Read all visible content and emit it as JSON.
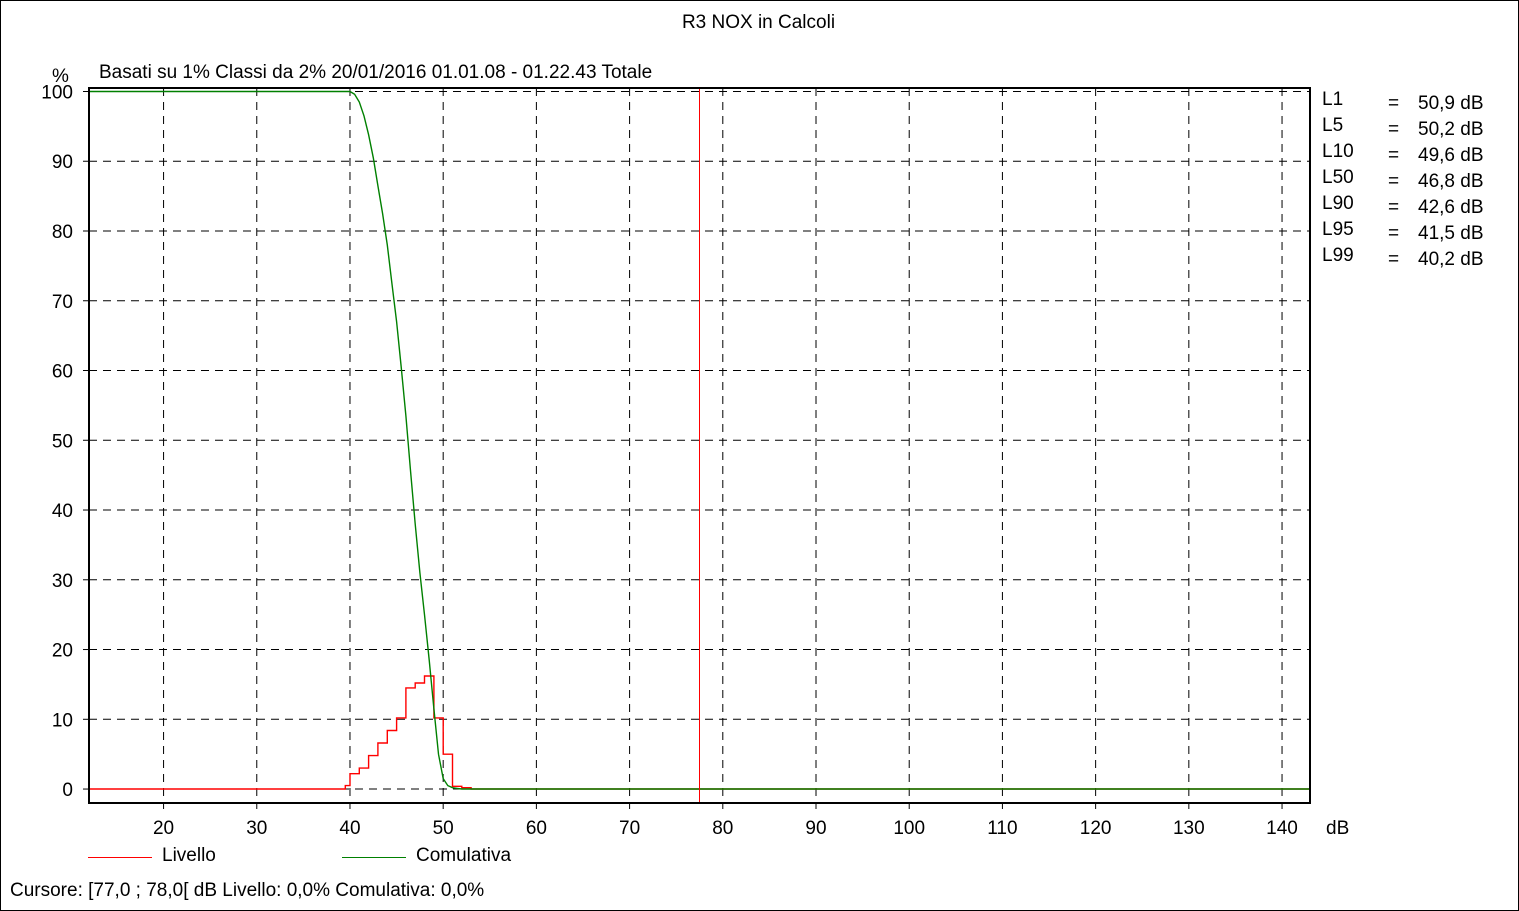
{
  "chart_data": {
    "type": "line",
    "title": "R3 NOX in Calcoli",
    "subtitle": "Basati su 1%   Classi da 2%  20/01/2016 01.01.08 - 01.22.43  Totale",
    "xlabel": "dB",
    "ylabel": "%",
    "xlim": [
      12,
      143
    ],
    "ylim": [
      -2,
      100.5
    ],
    "x_ticks": [
      20,
      30,
      40,
      50,
      60,
      70,
      80,
      90,
      100,
      110,
      120,
      130,
      140
    ],
    "y_ticks": [
      0,
      10,
      20,
      30,
      40,
      50,
      60,
      70,
      80,
      90,
      100
    ],
    "grid": true,
    "legend_position": "bottom-left",
    "cursor_x": 77.5,
    "series": [
      {
        "name": "Livello",
        "color": "#ff0000",
        "kind": "step",
        "bins": [
          {
            "x0": 12.0,
            "x1": 39.5,
            "y": 0.0
          },
          {
            "x0": 39.5,
            "x1": 40.0,
            "y": 0.5
          },
          {
            "x0": 40.0,
            "x1": 41.0,
            "y": 2.2
          },
          {
            "x0": 41.0,
            "x1": 42.0,
            "y": 3.0
          },
          {
            "x0": 42.0,
            "x1": 43.0,
            "y": 4.8
          },
          {
            "x0": 43.0,
            "x1": 44.0,
            "y": 6.6
          },
          {
            "x0": 44.0,
            "x1": 45.0,
            "y": 8.4
          },
          {
            "x0": 45.0,
            "x1": 46.0,
            "y": 10.2
          },
          {
            "x0": 46.0,
            "x1": 47.0,
            "y": 14.5
          },
          {
            "x0": 47.0,
            "x1": 48.0,
            "y": 15.2
          },
          {
            "x0": 48.0,
            "x1": 49.0,
            "y": 16.2
          },
          {
            "x0": 49.0,
            "x1": 50.0,
            "y": 10.2
          },
          {
            "x0": 50.0,
            "x1": 51.0,
            "y": 5.0
          },
          {
            "x0": 51.0,
            "x1": 52.0,
            "y": 0.4
          },
          {
            "x0": 52.0,
            "x1": 53.0,
            "y": 0.2
          },
          {
            "x0": 53.0,
            "x1": 143.0,
            "y": 0.0
          }
        ]
      },
      {
        "name": "Comulativa",
        "color": "#008000",
        "kind": "line",
        "x": [
          12,
          40,
          40.5,
          41,
          41.5,
          42,
          42.5,
          43,
          43.5,
          44,
          44.5,
          45,
          45.5,
          46,
          46.5,
          47,
          47.5,
          48,
          48.5,
          49,
          49.5,
          50,
          50.5,
          51,
          51.5,
          52,
          53,
          143
        ],
        "y": [
          100,
          100,
          99.6,
          98.5,
          96.5,
          93.8,
          90.5,
          86.5,
          82.5,
          78.0,
          72.5,
          67.0,
          60.5,
          53.5,
          45.5,
          38.0,
          31.0,
          25.0,
          18.5,
          11.5,
          5.0,
          1.5,
          0.5,
          0.2,
          0.1,
          0.0,
          0.0,
          0.0
        ]
      }
    ],
    "stats": [
      {
        "name": "L1",
        "eq": "=",
        "value": "50,9 dB"
      },
      {
        "name": "L5",
        "eq": "=",
        "value": "50,2 dB"
      },
      {
        "name": "L10",
        "eq": "=",
        "value": "49,6 dB"
      },
      {
        "name": "L50",
        "eq": "=",
        "value": "46,8 dB"
      },
      {
        "name": "L90",
        "eq": "=",
        "value": "42,6 dB"
      },
      {
        "name": "L95",
        "eq": "=",
        "value": "41,5 dB"
      },
      {
        "name": "L99",
        "eq": "=",
        "value": "40,2 dB"
      }
    ],
    "legend": [
      {
        "label": "Livello",
        "color": "#ff0000"
      },
      {
        "label": "Comulativa",
        "color": "#008000"
      }
    ],
    "cursor_text": "Cursore: [77,0 ; 78,0[ dB   Livello: 0,0%   Comulativa: 0,0%"
  }
}
